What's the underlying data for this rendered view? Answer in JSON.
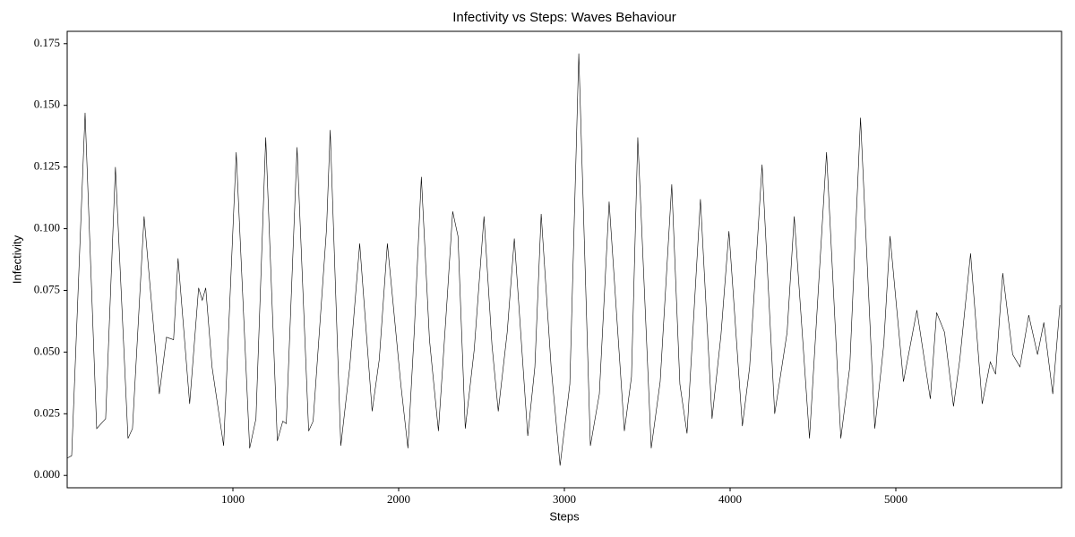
{
  "chart_data": {
    "type": "line",
    "title": "Infectivity vs Steps: Waves Behaviour",
    "x_label": "Steps",
    "y_label": "Infectivity",
    "x": [
      0,
      27,
      108,
      178,
      232,
      291,
      367,
      394,
      464,
      556,
      599,
      642,
      669,
      739,
      793,
      815,
      836,
      874,
      944,
      1020,
      1101,
      1139,
      1198,
      1268,
      1301,
      1322,
      1387,
      1457,
      1484,
      1565,
      1587,
      1651,
      1705,
      1765,
      1840,
      1883,
      1932,
      2013,
      2056,
      2094,
      2137,
      2186,
      2240,
      2294,
      2326,
      2358,
      2402,
      2456,
      2515,
      2563,
      2601,
      2655,
      2698,
      2779,
      2822,
      2860,
      2920,
      2974,
      3033,
      3087,
      3157,
      3211,
      3270,
      3362,
      3405,
      3443,
      3524,
      3578,
      3648,
      3697,
      3740,
      3821,
      3891,
      3945,
      3993,
      4074,
      4118,
      4193,
      4269,
      4344,
      4387,
      4479,
      4533,
      4582,
      4668,
      4722,
      4787,
      4873,
      4927,
      4965,
      5046,
      5127,
      5208,
      5246,
      5294,
      5348,
      5386,
      5451,
      5521,
      5570,
      5602,
      5645,
      5705,
      5749,
      5802,
      5855,
      5893,
      5947,
      5990
    ],
    "series": [
      {
        "name": "Infectivity",
        "color": "#000000",
        "values": [
          0.007,
          0.008,
          0.147,
          0.019,
          0.023,
          0.125,
          0.015,
          0.019,
          0.105,
          0.033,
          0.056,
          0.055,
          0.088,
          0.029,
          0.076,
          0.071,
          0.076,
          0.044,
          0.012,
          0.131,
          0.011,
          0.023,
          0.137,
          0.014,
          0.022,
          0.021,
          0.133,
          0.018,
          0.022,
          0.1,
          0.14,
          0.012,
          0.044,
          0.094,
          0.026,
          0.047,
          0.094,
          0.037,
          0.011,
          0.058,
          0.121,
          0.055,
          0.018,
          0.073,
          0.107,
          0.097,
          0.019,
          0.051,
          0.105,
          0.053,
          0.026,
          0.058,
          0.096,
          0.016,
          0.044,
          0.106,
          0.044,
          0.004,
          0.037,
          0.171,
          0.012,
          0.033,
          0.111,
          0.018,
          0.04,
          0.137,
          0.011,
          0.038,
          0.118,
          0.037,
          0.017,
          0.112,
          0.023,
          0.057,
          0.099,
          0.02,
          0.044,
          0.126,
          0.025,
          0.058,
          0.105,
          0.015,
          0.076,
          0.131,
          0.015,
          0.044,
          0.145,
          0.019,
          0.053,
          0.097,
          0.038,
          0.067,
          0.031,
          0.066,
          0.058,
          0.028,
          0.047,
          0.09,
          0.029,
          0.046,
          0.041,
          0.082,
          0.049,
          0.044,
          0.065,
          0.049,
          0.062,
          0.033,
          0.069
        ]
      }
    ],
    "xlim": [
      0,
      6000
    ],
    "ylim": [
      -0.005,
      0.18
    ],
    "xticks": [
      1000,
      2000,
      3000,
      4000,
      5000
    ],
    "yticks": [
      {
        "value": 0,
        "label": "0.000"
      },
      {
        "value": 0.025,
        "label": "0.025"
      },
      {
        "value": 0.05,
        "label": "0.050"
      },
      {
        "value": 0.075,
        "label": "0.075"
      },
      {
        "value": 0.1,
        "label": "0.100"
      },
      {
        "value": 0.125,
        "label": "0.125"
      },
      {
        "value": 0.15,
        "label": "0.150"
      },
      {
        "value": 0.175,
        "label": "0.175"
      }
    ],
    "grid": false
  }
}
